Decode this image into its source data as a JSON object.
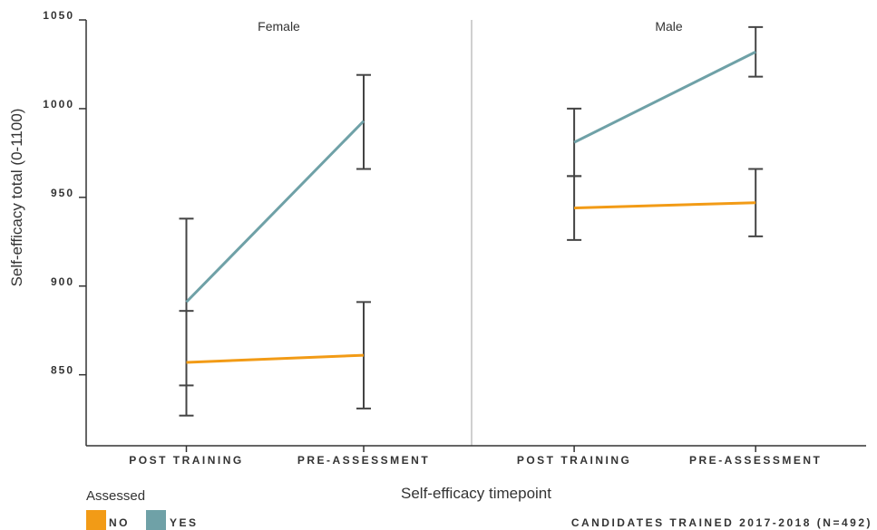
{
  "chart_data": {
    "type": "line",
    "xlabel": "Self-efficacy timepoint",
    "ylabel": "Self-efficacy total (0-1100)",
    "ylim": [
      810,
      1050
    ],
    "yticks": [
      "850",
      "900",
      "950",
      "1000",
      "1050"
    ],
    "ytick_values": [
      850,
      900,
      950,
      1000,
      1050
    ],
    "categories": [
      "POST TRAINING",
      "PRE-ASSESSMENT"
    ],
    "facets": [
      {
        "name": "Female",
        "series": [
          {
            "name": "NO",
            "values": [
              857,
              861
            ],
            "error_low": [
              827,
              831
            ],
            "error_high": [
              886,
              891
            ]
          },
          {
            "name": "YES",
            "values": [
              891,
              993
            ],
            "error_low": [
              844,
              966
            ],
            "error_high": [
              938,
              1019
            ]
          }
        ]
      },
      {
        "name": "Male",
        "series": [
          {
            "name": "NO",
            "values": [
              944,
              947
            ],
            "error_low": [
              926,
              928
            ],
            "error_high": [
              962,
              966
            ]
          },
          {
            "name": "YES",
            "values": [
              981,
              1032
            ],
            "error_low": [
              962,
              1018
            ],
            "error_high": [
              1000,
              1046
            ]
          }
        ]
      }
    ],
    "legend": {
      "title": "Assessed",
      "placement": "bottom-left",
      "entries": [
        {
          "label": "NO",
          "color": "#F29B16"
        },
        {
          "label": "YES",
          "color": "#6FA1A7"
        }
      ]
    },
    "caption": "CANDIDATES TRAINED 2017-2018 (N=492)",
    "grid": false,
    "colors": {
      "axis": "#333333",
      "errorbar": "#444444",
      "facet_divider": "#d0d0d0"
    }
  }
}
